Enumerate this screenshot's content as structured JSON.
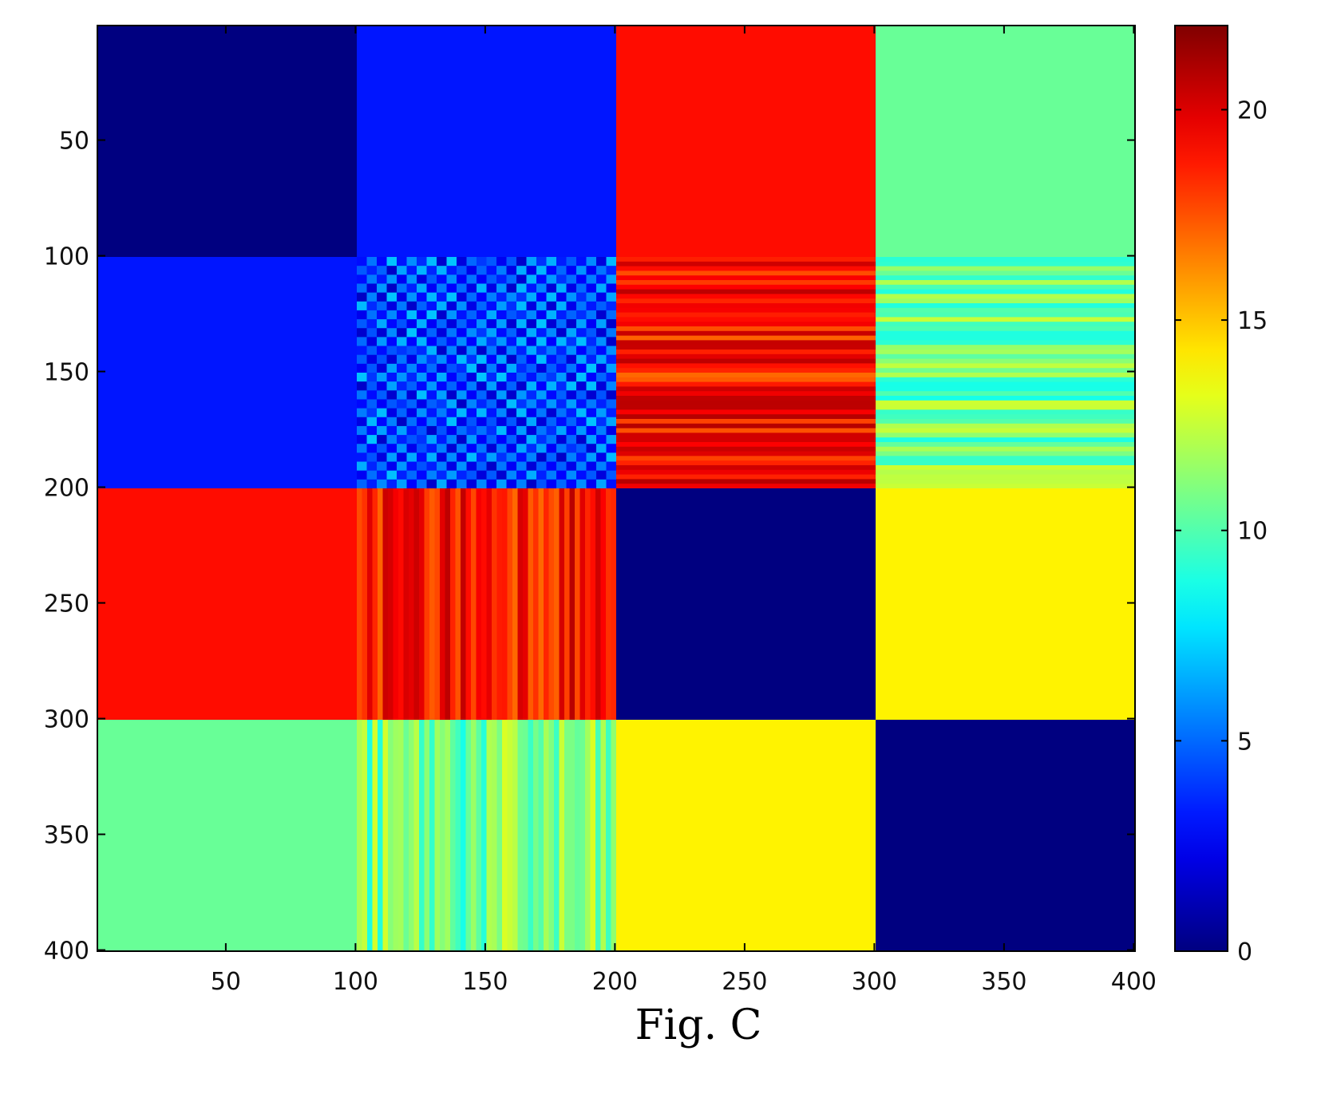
{
  "chart_data": {
    "type": "heatmap",
    "title": "",
    "xlabel": "",
    "ylabel": "",
    "caption": "Fig. C",
    "xlim": [
      0.5,
      400.5
    ],
    "ylim": [
      0.5,
      400.5
    ],
    "y_axis_direction": "top-to-bottom",
    "x_ticks": [
      50,
      100,
      150,
      200,
      250,
      300,
      350,
      400
    ],
    "y_ticks": [
      50,
      100,
      150,
      200,
      250,
      300,
      350,
      400
    ],
    "colormap": "jet",
    "colorbar": {
      "range": [
        0,
        22
      ],
      "ticks": [
        0,
        5,
        10,
        15,
        20
      ],
      "placement": "right"
    },
    "block_size": 100,
    "blocks": [
      {
        "row": 1,
        "col": 1,
        "pattern": "uniform",
        "value": 0
      },
      {
        "row": 1,
        "col": 2,
        "pattern": "uniform",
        "value": 3.2
      },
      {
        "row": 1,
        "col": 3,
        "pattern": "uniform",
        "value": 19
      },
      {
        "row": 1,
        "col": 4,
        "pattern": "uniform",
        "value": 10.5
      },
      {
        "row": 2,
        "col": 1,
        "pattern": "uniform",
        "value": 3.2
      },
      {
        "row": 2,
        "col": 2,
        "pattern": "checker",
        "value_range": [
          1.5,
          7
        ]
      },
      {
        "row": 2,
        "col": 3,
        "pattern": "horizontal-stripes",
        "value_range": [
          17,
          21
        ]
      },
      {
        "row": 2,
        "col": 4,
        "pattern": "horizontal-stripes",
        "value_range": [
          8.5,
          13
        ]
      },
      {
        "row": 3,
        "col": 1,
        "pattern": "uniform",
        "value": 19
      },
      {
        "row": 3,
        "col": 2,
        "pattern": "vertical-stripes",
        "value_range": [
          17,
          21
        ]
      },
      {
        "row": 3,
        "col": 3,
        "pattern": "uniform",
        "value": 0
      },
      {
        "row": 3,
        "col": 4,
        "pattern": "uniform",
        "value": 14
      },
      {
        "row": 4,
        "col": 1,
        "pattern": "uniform",
        "value": 10.5
      },
      {
        "row": 4,
        "col": 2,
        "pattern": "vertical-stripes",
        "value_range": [
          8.5,
          13
        ]
      },
      {
        "row": 4,
        "col": 3,
        "pattern": "uniform",
        "value": 14
      },
      {
        "row": 4,
        "col": 4,
        "pattern": "uniform",
        "value": 0
      }
    ]
  }
}
